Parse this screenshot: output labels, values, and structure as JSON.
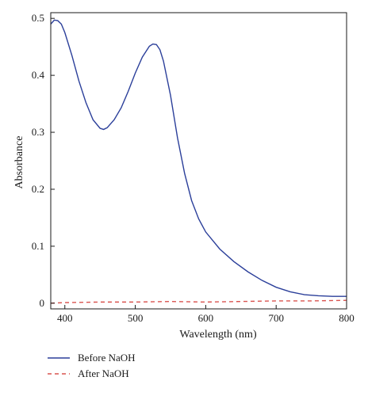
{
  "chart_data": {
    "type": "line",
    "xlabel": "Wavelength (nm)",
    "ylabel": "Absorbance",
    "xlim": [
      380,
      800
    ],
    "ylim": [
      -0.01,
      0.51
    ],
    "xticks": [
      400,
      500,
      600,
      700,
      800
    ],
    "yticks": [
      0,
      0.1,
      0.2,
      0.3,
      0.4,
      0.5
    ],
    "ytick_labels": [
      "0",
      "0.1",
      "0.2",
      "0.3",
      "0.4",
      "0.5"
    ],
    "grid": false,
    "legend_position": "bottom-left",
    "series": [
      {
        "name": "Before NaOH",
        "color": "#2b3f9a",
        "style": "solid",
        "x": [
          380,
          385,
          390,
          395,
          400,
          410,
          420,
          430,
          440,
          450,
          455,
          460,
          470,
          480,
          490,
          500,
          510,
          520,
          525,
          530,
          535,
          540,
          550,
          560,
          570,
          580,
          590,
          600,
          620,
          640,
          660,
          680,
          700,
          720,
          740,
          760,
          780,
          800
        ],
        "y": [
          0.49,
          0.497,
          0.496,
          0.49,
          0.475,
          0.435,
          0.39,
          0.352,
          0.322,
          0.307,
          0.305,
          0.308,
          0.322,
          0.343,
          0.372,
          0.404,
          0.432,
          0.451,
          0.455,
          0.454,
          0.445,
          0.425,
          0.365,
          0.29,
          0.228,
          0.18,
          0.148,
          0.125,
          0.095,
          0.073,
          0.055,
          0.04,
          0.028,
          0.02,
          0.015,
          0.013,
          0.012,
          0.012
        ]
      },
      {
        "name": "After NaOH",
        "color": "#d9534f",
        "style": "dashed",
        "x": [
          380,
          400,
          450,
          500,
          550,
          600,
          650,
          700,
          750,
          800
        ],
        "y": [
          0.0,
          0.001,
          0.002,
          0.002,
          0.003,
          0.002,
          0.003,
          0.004,
          0.004,
          0.005
        ]
      }
    ]
  }
}
